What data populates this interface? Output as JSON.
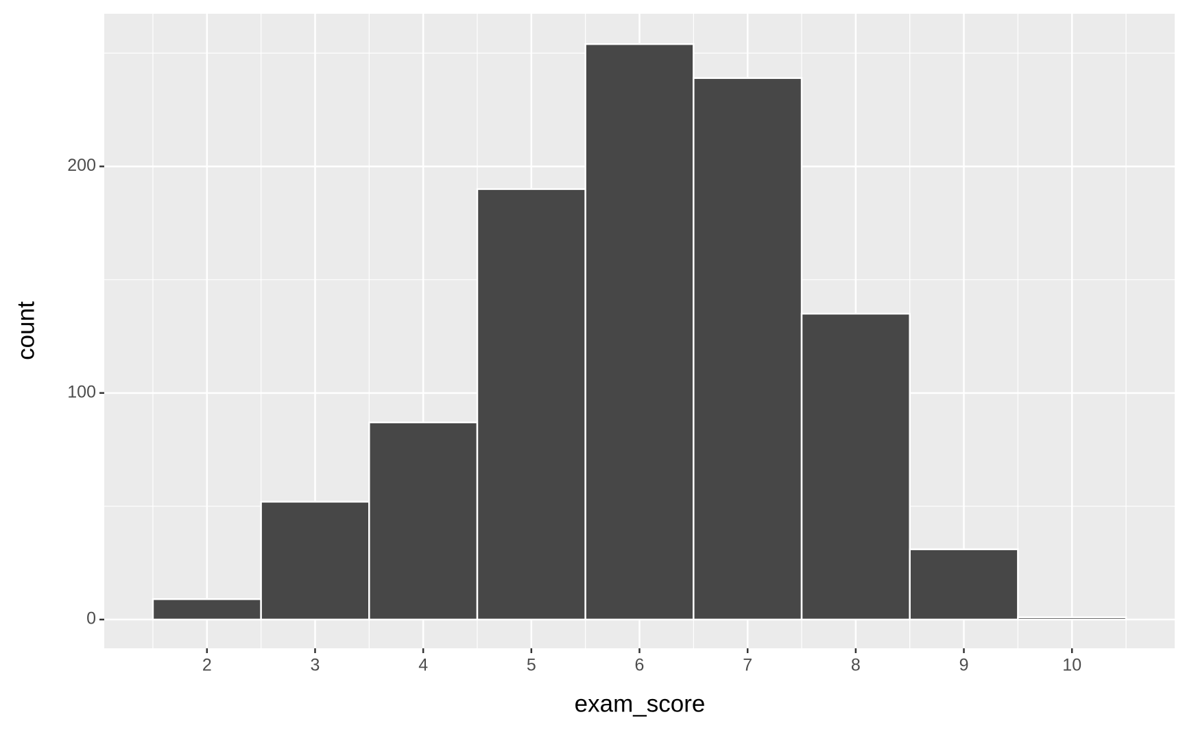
{
  "chart_data": {
    "type": "histogram",
    "x_label": "exam_score",
    "y_label": "count",
    "bins": [
      1.5,
      2.5,
      3.5,
      4.5,
      5.5,
      6.5,
      7.5,
      8.5,
      9.5,
      10.5
    ],
    "values": [
      9,
      52,
      87,
      190,
      254,
      239,
      135,
      31,
      1
    ],
    "color": "#474747",
    "xlim": [
      1.05,
      10.95
    ],
    "xticks": [
      2,
      3,
      4,
      5,
      6,
      7,
      8,
      9,
      10
    ],
    "ylim": [
      -12.7,
      267.4
    ],
    "yticks": [
      0,
      100,
      200
    ],
    "grid": true
  }
}
